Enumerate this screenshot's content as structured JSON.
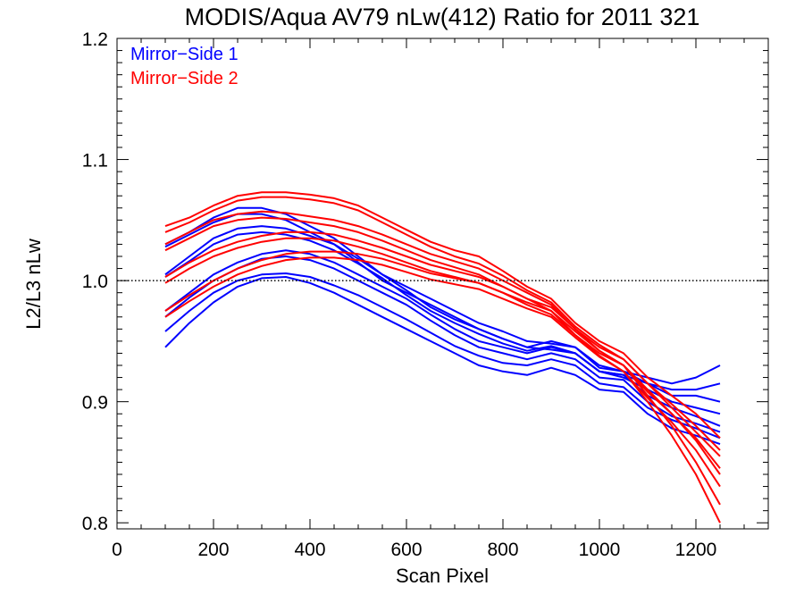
{
  "chart_data": {
    "type": "line",
    "title": "MODIS/Aqua AV79 nLw(412) Ratio for 2011 321",
    "xlabel": "Scan Pixel",
    "ylabel": "L2/L3 nLw",
    "xlim": [
      0,
      1350
    ],
    "ylim": [
      0.795,
      1.2
    ],
    "xticks": [
      "0",
      "200",
      "400",
      "600",
      "800",
      "1000",
      "1200"
    ],
    "yticks": [
      "0.8",
      "0.9",
      "1.0",
      "1.1",
      "1.2"
    ],
    "reference_line": 1.0,
    "legend_position": "top-left",
    "legend": [
      {
        "label": "Mirror−Side 1",
        "color": "#0000ff"
      },
      {
        "label": "Mirror−Side 2",
        "color": "#ff0000"
      }
    ],
    "x": [
      100,
      150,
      200,
      250,
      300,
      350,
      400,
      450,
      500,
      550,
      600,
      650,
      700,
      750,
      800,
      850,
      900,
      950,
      1000,
      1050,
      1100,
      1150,
      1200,
      1250
    ],
    "series": [
      {
        "group": "Mirror-Side 1",
        "color": "#0000ff",
        "values": [
          1.03,
          1.04,
          1.052,
          1.06,
          1.06,
          1.055,
          1.045,
          1.035,
          1.02,
          1.005,
          0.995,
          0.985,
          0.975,
          0.965,
          0.958,
          0.95,
          0.948,
          0.945,
          0.93,
          0.925,
          0.92,
          0.915,
          0.92,
          0.93
        ]
      },
      {
        "group": "Mirror-Side 1",
        "color": "#0000ff",
        "values": [
          1.028,
          1.038,
          1.048,
          1.055,
          1.055,
          1.05,
          1.04,
          1.03,
          1.015,
          1.0,
          0.99,
          0.98,
          0.97,
          0.96,
          0.952,
          0.945,
          0.943,
          0.94,
          0.925,
          0.922,
          0.915,
          0.91,
          0.91,
          0.915
        ]
      },
      {
        "group": "Mirror-Side 1",
        "color": "#0000ff",
        "values": [
          1.005,
          1.02,
          1.035,
          1.043,
          1.045,
          1.043,
          1.037,
          1.03,
          1.018,
          1.005,
          0.992,
          0.978,
          0.968,
          0.96,
          0.952,
          0.945,
          0.95,
          0.945,
          0.928,
          0.925,
          0.915,
          0.905,
          0.905,
          0.9
        ]
      },
      {
        "group": "Mirror-Side 1",
        "color": "#0000ff",
        "values": [
          1.003,
          1.016,
          1.03,
          1.038,
          1.04,
          1.038,
          1.033,
          1.025,
          1.014,
          1.002,
          0.988,
          0.975,
          0.965,
          0.956,
          0.948,
          0.942,
          0.946,
          0.94,
          0.925,
          0.92,
          0.91,
          0.9,
          0.895,
          0.89
        ]
      },
      {
        "group": "Mirror-Side 1",
        "color": "#0000ff",
        "values": [
          0.975,
          0.99,
          1.005,
          1.015,
          1.022,
          1.025,
          1.022,
          1.015,
          1.005,
          0.995,
          0.985,
          0.972,
          0.96,
          0.95,
          0.945,
          0.94,
          0.945,
          0.94,
          0.925,
          0.922,
          0.905,
          0.895,
          0.888,
          0.88
        ]
      },
      {
        "group": "Mirror-Side 1",
        "color": "#0000ff",
        "values": [
          0.97,
          0.986,
          1.0,
          1.01,
          1.018,
          1.02,
          1.017,
          1.01,
          1.0,
          0.99,
          0.98,
          0.967,
          0.955,
          0.945,
          0.94,
          0.935,
          0.94,
          0.935,
          0.92,
          0.918,
          0.9,
          0.888,
          0.882,
          0.875
        ]
      },
      {
        "group": "Mirror-Side 1",
        "color": "#0000ff",
        "values": [
          0.958,
          0.975,
          0.99,
          1.0,
          1.005,
          1.006,
          1.003,
          0.996,
          0.988,
          0.978,
          0.968,
          0.957,
          0.946,
          0.938,
          0.932,
          0.93,
          0.935,
          0.93,
          0.915,
          0.912,
          0.895,
          0.885,
          0.878,
          0.87
        ]
      },
      {
        "group": "Mirror-Side 1",
        "color": "#0000ff",
        "values": [
          0.945,
          0.965,
          0.982,
          0.995,
          1.002,
          1.003,
          0.998,
          0.99,
          0.98,
          0.97,
          0.96,
          0.95,
          0.94,
          0.93,
          0.925,
          0.922,
          0.928,
          0.922,
          0.91,
          0.908,
          0.89,
          0.878,
          0.872,
          0.865
        ]
      },
      {
        "group": "Mirror-Side 2",
        "color": "#ff0000",
        "values": [
          1.045,
          1.052,
          1.062,
          1.07,
          1.073,
          1.073,
          1.071,
          1.068,
          1.062,
          1.052,
          1.042,
          1.032,
          1.025,
          1.02,
          1.008,
          0.995,
          0.985,
          0.965,
          0.95,
          0.94,
          0.92,
          0.905,
          0.89,
          0.87
        ]
      },
      {
        "group": "Mirror-Side 2",
        "color": "#ff0000",
        "values": [
          1.04,
          1.048,
          1.058,
          1.066,
          1.069,
          1.069,
          1.067,
          1.064,
          1.058,
          1.048,
          1.038,
          1.028,
          1.02,
          1.014,
          1.004,
          0.992,
          0.982,
          0.962,
          0.947,
          0.935,
          0.915,
          0.898,
          0.88,
          0.86
        ]
      },
      {
        "group": "Mirror-Side 2",
        "color": "#ff0000",
        "values": [
          1.03,
          1.04,
          1.05,
          1.055,
          1.057,
          1.056,
          1.053,
          1.05,
          1.045,
          1.038,
          1.03,
          1.022,
          1.016,
          1.01,
          1.0,
          0.99,
          0.98,
          0.96,
          0.945,
          0.935,
          0.915,
          0.895,
          0.875,
          0.855
        ]
      },
      {
        "group": "Mirror-Side 2",
        "color": "#ff0000",
        "values": [
          1.025,
          1.035,
          1.045,
          1.05,
          1.052,
          1.051,
          1.048,
          1.045,
          1.04,
          1.033,
          1.025,
          1.017,
          1.011,
          1.005,
          0.995,
          0.985,
          0.975,
          0.955,
          0.94,
          0.93,
          0.91,
          0.89,
          0.87,
          0.845
        ]
      },
      {
        "group": "Mirror-Side 2",
        "color": "#ff0000",
        "values": [
          1.003,
          1.015,
          1.025,
          1.032,
          1.037,
          1.04,
          1.04,
          1.038,
          1.033,
          1.027,
          1.02,
          1.013,
          1.008,
          1.003,
          0.995,
          0.985,
          0.978,
          0.96,
          0.942,
          0.93,
          0.908,
          0.89,
          0.868,
          0.84
        ]
      },
      {
        "group": "Mirror-Side 2",
        "color": "#ff0000",
        "values": [
          0.998,
          1.01,
          1.02,
          1.027,
          1.032,
          1.035,
          1.035,
          1.033,
          1.028,
          1.022,
          1.015,
          1.008,
          1.003,
          0.998,
          0.99,
          0.98,
          0.972,
          0.955,
          0.938,
          0.925,
          0.903,
          0.883,
          0.86,
          0.83
        ]
      },
      {
        "group": "Mirror-Side 2",
        "color": "#ff0000",
        "values": [
          0.975,
          0.988,
          1.0,
          1.01,
          1.017,
          1.022,
          1.024,
          1.024,
          1.022,
          1.018,
          1.012,
          1.006,
          1.002,
          0.998,
          0.99,
          0.982,
          0.975,
          0.958,
          0.942,
          0.93,
          0.905,
          0.88,
          0.85,
          0.815
        ]
      },
      {
        "group": "Mirror-Side 2",
        "color": "#ff0000",
        "values": [
          0.97,
          0.983,
          0.995,
          1.005,
          1.012,
          1.017,
          1.019,
          1.019,
          1.017,
          1.013,
          1.007,
          1.001,
          0.997,
          0.993,
          0.985,
          0.977,
          0.97,
          0.953,
          0.937,
          0.925,
          0.9,
          0.872,
          0.84,
          0.8
        ]
      }
    ]
  }
}
